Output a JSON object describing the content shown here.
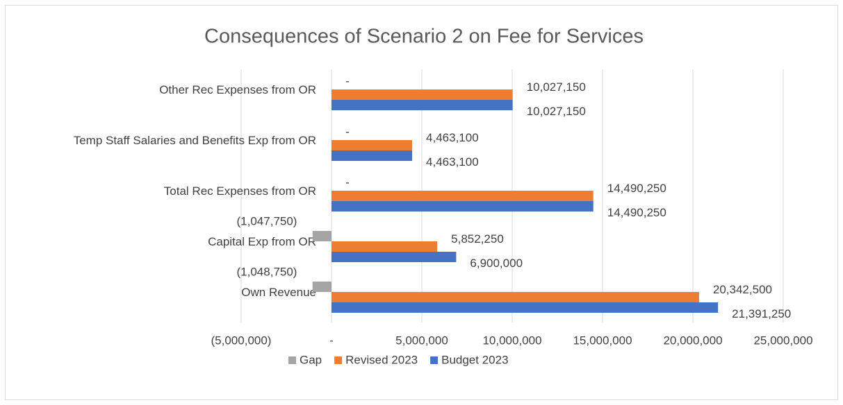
{
  "chart_data": {
    "type": "hbar",
    "title": "Consequences of Scenario 2 on Fee for Services",
    "categories": [
      "Other Rec Expenses from OR",
      "Temp Staff Salaries and Benefits Exp from OR",
      "Total Rec Expenses from OR",
      "Capital Exp from OR",
      "Own Revenue"
    ],
    "series": [
      {
        "name": "Gap",
        "color": "#a5a5a5",
        "values": [
          0,
          0,
          0,
          -1047750,
          -1048750
        ],
        "value_labels": [
          "-",
          "-",
          "-",
          "(1,047,750)",
          "(1,048,750)"
        ]
      },
      {
        "name": "Revised 2023",
        "color": "#ed7d31",
        "values": [
          10027150,
          4463100,
          14490250,
          5852250,
          20342500
        ],
        "value_labels": [
          "10,027,150",
          "4,463,100",
          "14,490,250",
          "5,852,250",
          "20,342,500"
        ]
      },
      {
        "name": "Budget 2023",
        "color": "#4472c4",
        "values": [
          10027150,
          4463100,
          14490250,
          6900000,
          21391250
        ],
        "value_labels": [
          "10,027,150",
          "4,463,100",
          "14,490,250",
          "6,900,000",
          "21,391,250"
        ]
      }
    ],
    "xlim": [
      -5000000,
      25000000
    ],
    "xticks": [
      {
        "value": -5000000,
        "label": "(5,000,000)"
      },
      {
        "value": 0,
        "label": "-"
      },
      {
        "value": 5000000,
        "label": "5,000,000"
      },
      {
        "value": 10000000,
        "label": "10,000,000"
      },
      {
        "value": 15000000,
        "label": "15,000,000"
      },
      {
        "value": 20000000,
        "label": "20,000,000"
      },
      {
        "value": 25000000,
        "label": "25,000,000"
      }
    ],
    "grid": true
  }
}
